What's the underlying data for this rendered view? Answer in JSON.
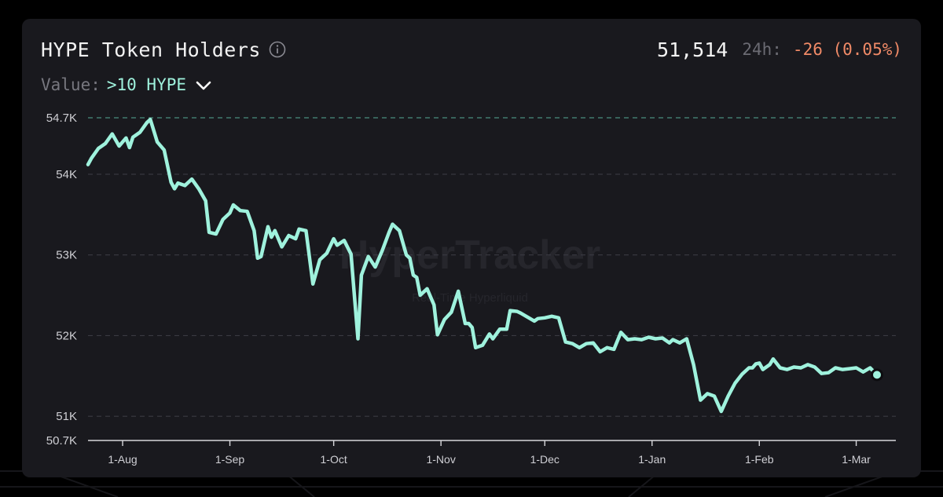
{
  "header": {
    "title": "HYPE Token Holders",
    "info_icon": "info-circle-icon",
    "current_value": "51,514",
    "change_label": "24h:",
    "change_value": "-26 (0.05%)"
  },
  "filter": {
    "label": "Value:",
    "selected": ">10 HYPE",
    "dropdown_icon": "chevron-down-icon"
  },
  "watermark": {
    "main": "HyperTracker",
    "sub": "Real-Time Hyperliquid"
  },
  "colors": {
    "line": "#9ff2dd",
    "negative_change": "#f08a67",
    "card_background": "#19191e",
    "grid": "#3a3a42"
  },
  "chart_data": {
    "type": "line",
    "title": "HYPE Token Holders",
    "xlabel": "",
    "ylabel": "",
    "ylim": [
      50700,
      54700
    ],
    "y_ticks": [
      {
        "value": 54700,
        "label": "54.7K"
      },
      {
        "value": 54000,
        "label": "54K"
      },
      {
        "value": 53000,
        "label": "53K"
      },
      {
        "value": 52000,
        "label": "52K"
      },
      {
        "value": 51000,
        "label": "51K"
      },
      {
        "value": 50700,
        "label": "50.7K"
      }
    ],
    "x_ticks": [
      {
        "day": 0,
        "label": "1-Aug"
      },
      {
        "day": 31,
        "label": "1-Sep"
      },
      {
        "day": 61,
        "label": "1-Oct"
      },
      {
        "day": 92,
        "label": "1-Nov"
      },
      {
        "day": 122,
        "label": "1-Dec"
      },
      {
        "day": 153,
        "label": "1-Jan"
      },
      {
        "day": 184,
        "label": "1-Feb"
      },
      {
        "day": 212,
        "label": "1-Mar"
      }
    ],
    "xlim": [
      -10,
      223
    ],
    "grid": "dashed horizontal",
    "series": [
      {
        "x": [
          -10,
          -9,
          -7,
          -5,
          -3,
          -1,
          1,
          2,
          3,
          5,
          7,
          8,
          10,
          12,
          14,
          15,
          16,
          18,
          20,
          22,
          24,
          25,
          27,
          29,
          31,
          32,
          34,
          36,
          38,
          39,
          40,
          42,
          43,
          44,
          46,
          48,
          50,
          51,
          53,
          55,
          57,
          59,
          61,
          62,
          64,
          66,
          67,
          68,
          69,
          71,
          73,
          75,
          77,
          78,
          80,
          82,
          83,
          84,
          85,
          86,
          88,
          90,
          91,
          93,
          95,
          97,
          99,
          100,
          101,
          102,
          104,
          106,
          107,
          109,
          111,
          112,
          114,
          115,
          117,
          119,
          120,
          122,
          124,
          126,
          128,
          130,
          132,
          134,
          136,
          138,
          140,
          142,
          144,
          146,
          148,
          150,
          152,
          154,
          156,
          158,
          159,
          161,
          163,
          165,
          167,
          169,
          171,
          173,
          175,
          177,
          179,
          181,
          182,
          183,
          184,
          185,
          187,
          188,
          190,
          192,
          194,
          196,
          198,
          200,
          202,
          204,
          206,
          208,
          210,
          212,
          214,
          216,
          218
        ],
        "values": [
          54120,
          54200,
          54320,
          54380,
          54500,
          54350,
          54450,
          54330,
          54460,
          54520,
          54640,
          54680,
          54400,
          54300,
          53900,
          53820,
          53890,
          53860,
          53940,
          53820,
          53670,
          53280,
          53260,
          53440,
          53520,
          53620,
          53550,
          53540,
          53300,
          52960,
          52980,
          53350,
          53220,
          53300,
          53100,
          53240,
          53200,
          53320,
          53300,
          52640,
          52940,
          53020,
          53200,
          53120,
          53180,
          53010,
          52480,
          51960,
          52750,
          52980,
          52850,
          53050,
          53280,
          53380,
          53300,
          53000,
          52960,
          52750,
          52720,
          52500,
          52580,
          52380,
          52010,
          52200,
          52290,
          52550,
          52150,
          52150,
          52100,
          51850,
          51880,
          52020,
          51960,
          52080,
          52080,
          52310,
          52300,
          52280,
          52230,
          52180,
          52210,
          52220,
          52240,
          52220,
          51920,
          51900,
          51850,
          51900,
          51910,
          51800,
          51850,
          51830,
          52040,
          51950,
          51960,
          51950,
          51980,
          51960,
          51970,
          51910,
          51950,
          51910,
          51960,
          51640,
          51200,
          51280,
          51250,
          51060,
          51250,
          51410,
          51520,
          51600,
          51600,
          51650,
          51660,
          51580,
          51640,
          51710,
          51600,
          51580,
          51610,
          51600,
          51640,
          51610,
          51530,
          51540,
          51600,
          51580,
          51590,
          51600,
          51550,
          51600,
          51514
        ]
      }
    ],
    "last_point": 51514
  }
}
